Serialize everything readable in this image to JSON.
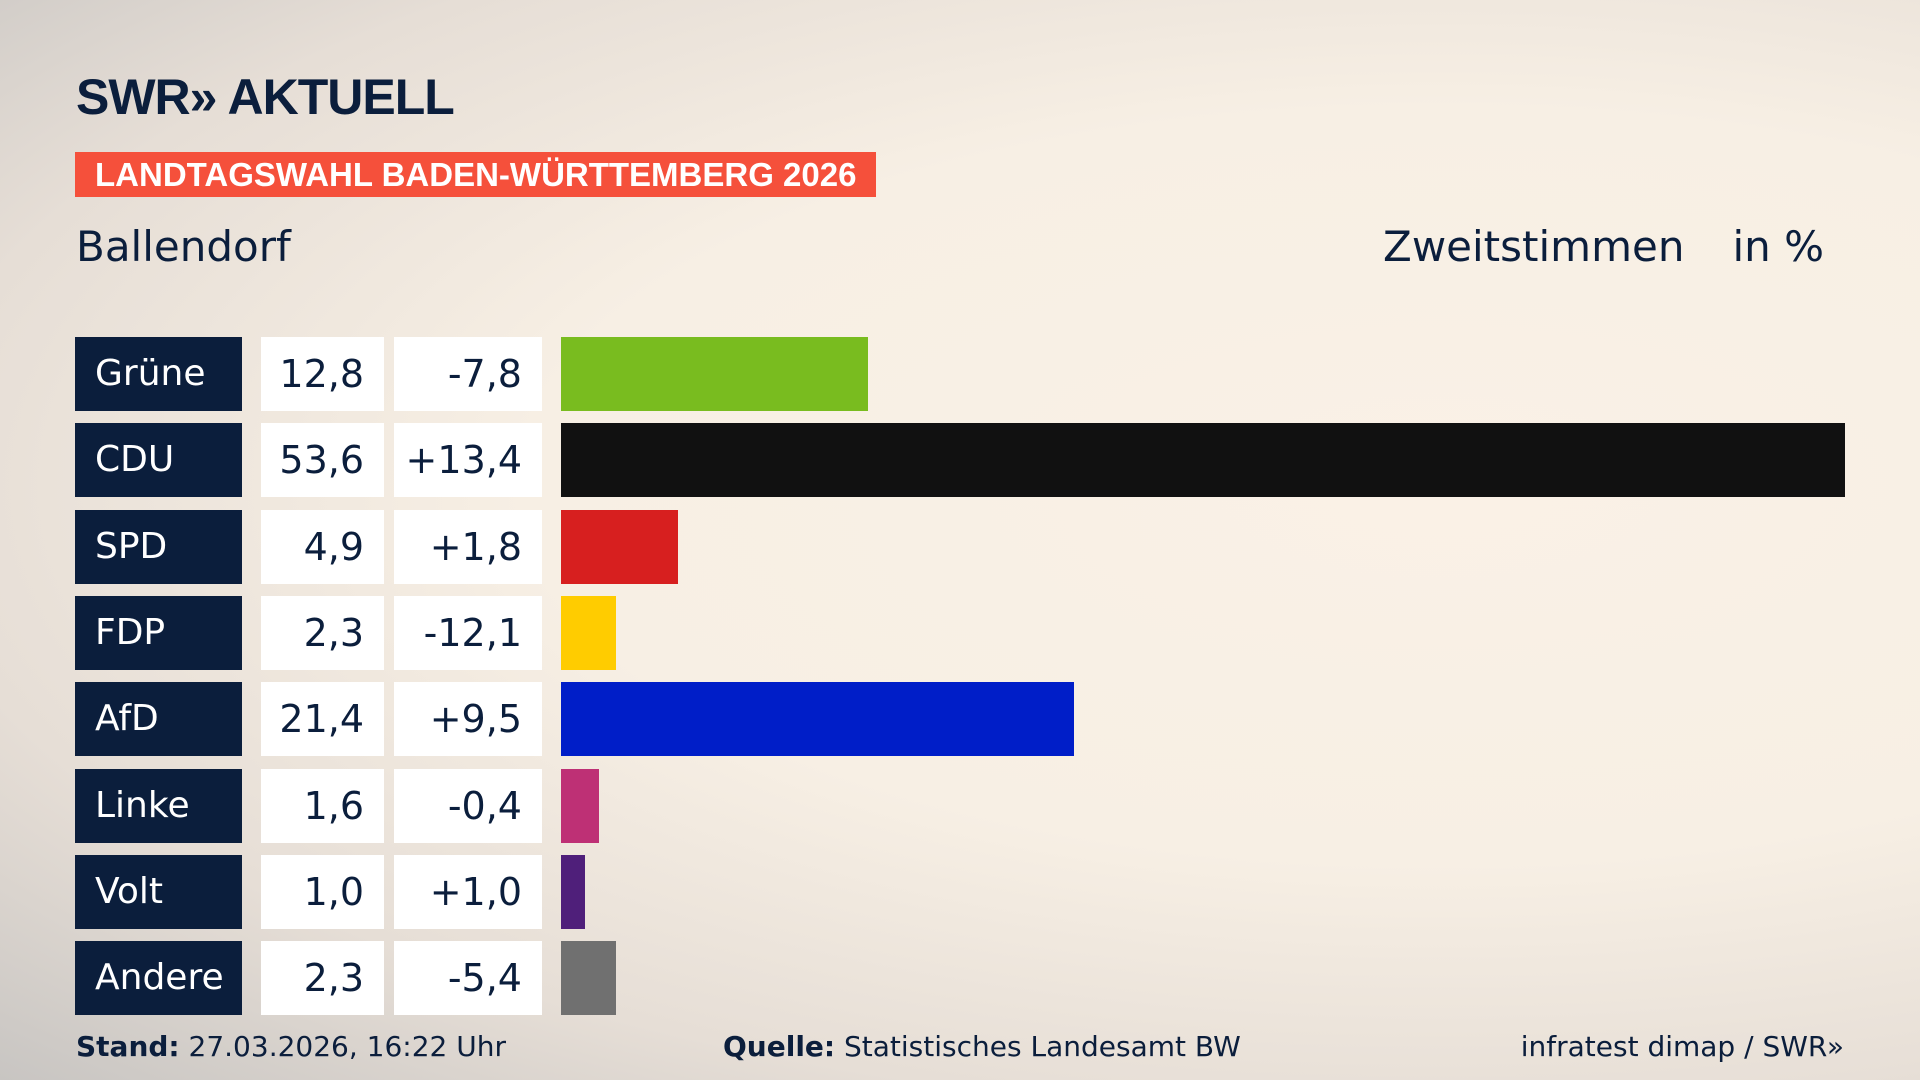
{
  "header": {
    "logo": "SWR» AKTUELL",
    "banner": "LANDTAGSWAHL BADEN-WÜRTTEMBERG 2026",
    "place": "Ballendorf",
    "metric": "Zweitstimmen",
    "unit": "in %"
  },
  "chart_data": {
    "type": "bar",
    "orientation": "horizontal",
    "categories": [
      "Grüne",
      "CDU",
      "SPD",
      "FDP",
      "AfD",
      "Linke",
      "Volt",
      "Andere"
    ],
    "values": [
      12.8,
      53.6,
      4.9,
      2.3,
      21.4,
      1.6,
      1.0,
      2.3
    ],
    "value_labels": [
      "12,8",
      "53,6",
      "4,9",
      "2,3",
      "21,4",
      "1,6",
      "1,0",
      "2,3"
    ],
    "diff_labels": [
      "-7,8",
      "+13,4",
      "+1,8",
      "-12,1",
      "+9,5",
      "-0,4",
      "+1,0",
      "-5,4"
    ],
    "diffs": [
      -7.8,
      13.4,
      1.8,
      -12.1,
      9.5,
      -0.4,
      1.0,
      -5.4
    ],
    "colors": [
      "#79bc1f",
      "#111111",
      "#d71f1f",
      "#ffcc00",
      "#001ec8",
      "#be3075",
      "#4f1f7a",
      "#707070"
    ],
    "xlim": [
      0,
      53.6
    ],
    "grid": false
  },
  "footer": {
    "stand_label": "Stand:",
    "stand": "27.03.2026, 16:22 Uhr",
    "source_label": "Quelle:",
    "source": "Statistisches Landesamt BW",
    "credit": "infratest dimap / SWR»"
  }
}
